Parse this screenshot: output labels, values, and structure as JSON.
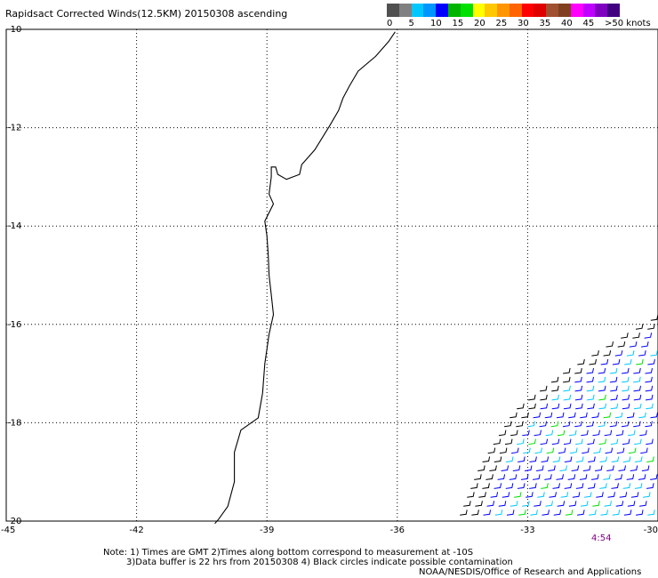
{
  "title": "Rapidsact Corrected Winds(12.5KM) 20150308 ascending",
  "legend": {
    "ticks": [
      "0",
      "5",
      "10",
      "15",
      "20",
      "25",
      "30",
      "35",
      "40",
      "45",
      ">50 knots"
    ],
    "colors": [
      "#505050",
      "#808080",
      "#00c8ff",
      "#0096ff",
      "#0000ff",
      "#00b400",
      "#00e000",
      "#ffff00",
      "#ffc800",
      "#ff9600",
      "#ff6400",
      "#ff0000",
      "#e00000",
      "#a05030",
      "#804020",
      "#ff00ff",
      "#c000ff",
      "#8000c0",
      "#400080"
    ]
  },
  "map": {
    "lat_labels": [
      "-10",
      "-12",
      "-14",
      "-16",
      "-18",
      "-20"
    ],
    "lon_labels": [
      "-45",
      "-42",
      "-39",
      "-36",
      "-33",
      "-30"
    ],
    "lat_range": [
      -20,
      -10
    ],
    "lon_range": [
      -45,
      -30
    ],
    "grid": "dotted",
    "coastline": [
      [
        -36.05,
        -10.05
      ],
      [
        -36.2,
        -10.25
      ],
      [
        -36.5,
        -10.55
      ],
      [
        -36.9,
        -10.85
      ],
      [
        -37.1,
        -11.15
      ],
      [
        -37.25,
        -11.4
      ],
      [
        -37.35,
        -11.65
      ],
      [
        -37.55,
        -11.95
      ],
      [
        -37.9,
        -12.45
      ],
      [
        -38.2,
        -12.75
      ],
      [
        -38.25,
        -12.95
      ],
      [
        -38.55,
        -13.05
      ],
      [
        -38.75,
        -12.95
      ],
      [
        -38.8,
        -12.8
      ],
      [
        -38.9,
        -12.8
      ],
      [
        -38.9,
        -13.0
      ],
      [
        -38.95,
        -13.35
      ],
      [
        -38.85,
        -13.55
      ],
      [
        -39.05,
        -13.9
      ],
      [
        -39.0,
        -14.2
      ],
      [
        -38.97,
        -14.6
      ],
      [
        -38.95,
        -15.0
      ],
      [
        -38.9,
        -15.4
      ],
      [
        -38.85,
        -15.8
      ],
      [
        -38.95,
        -16.2
      ],
      [
        -39.05,
        -16.8
      ],
      [
        -39.1,
        -17.4
      ],
      [
        -39.2,
        -17.9
      ],
      [
        -39.6,
        -18.15
      ],
      [
        -39.75,
        -18.6
      ],
      [
        -39.75,
        -19.2
      ],
      [
        -39.9,
        -19.7
      ],
      [
        -40.1,
        -19.95
      ],
      [
        -40.2,
        -20.05
      ]
    ],
    "wind": {
      "swath_edge": [
        [
          -30.05,
          -15.85
        ],
        [
          -31.1,
          -16.4
        ],
        [
          -32.2,
          -17.0
        ],
        [
          -33.3,
          -17.75
        ],
        [
          -34.1,
          -18.9
        ],
        [
          -34.6,
          -20.0
        ]
      ],
      "lon_step": 0.27,
      "lat_step": 0.18,
      "dominant_color": "#0000ff",
      "light_color": "#00c8ff",
      "contaminated_color": "#000000",
      "green_color": "#00e000"
    }
  },
  "time_label": "4:54",
  "notes": [
    "Note: 1) Times are GMT 2)Times along bottom correspond to measurement at -10S",
    "3)Data buffer is 22 hrs from 20150308 4) Black circles indicate possible contamination",
    "NOAA/NESDIS/Office of Research and Applications"
  ]
}
